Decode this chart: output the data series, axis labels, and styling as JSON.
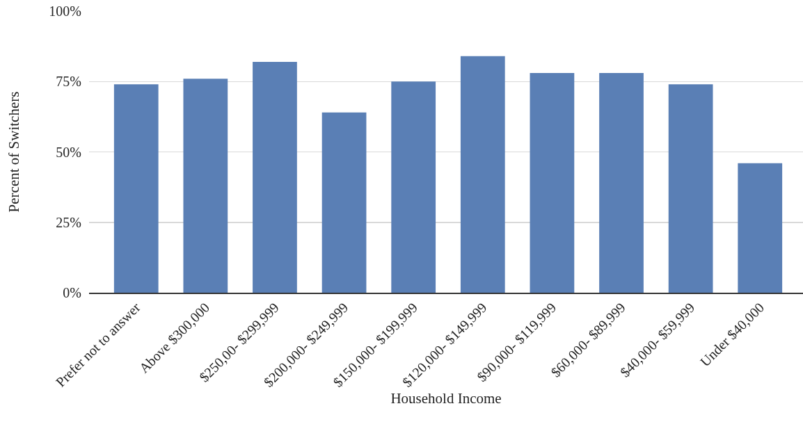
{
  "chart_data": {
    "type": "bar",
    "xlabel": "Household Income",
    "ylabel": "Percent of Switchers",
    "categories": [
      "Prefer not to answer",
      "Above $300,000",
      "$250,00- $299,999",
      "$200,000- $249,999",
      "$150,000- $199,999",
      "$120,000- $149,999",
      "$90,000- $119,999",
      "$60,000- $89,999",
      "$40,000- $59,999",
      "Under $40,000"
    ],
    "values": [
      74,
      76,
      82,
      64,
      75,
      84,
      78,
      78,
      74,
      46
    ],
    "color": "#5a7fb5",
    "ylim": [
      0,
      100
    ],
    "yticks": [
      {
        "value": 0,
        "label": "0%"
      },
      {
        "value": 25,
        "label": "25%"
      },
      {
        "value": 50,
        "label": "50%"
      },
      {
        "value": 75,
        "label": "75%"
      },
      {
        "value": 100,
        "label": "100%"
      }
    ],
    "grid": "y"
  }
}
